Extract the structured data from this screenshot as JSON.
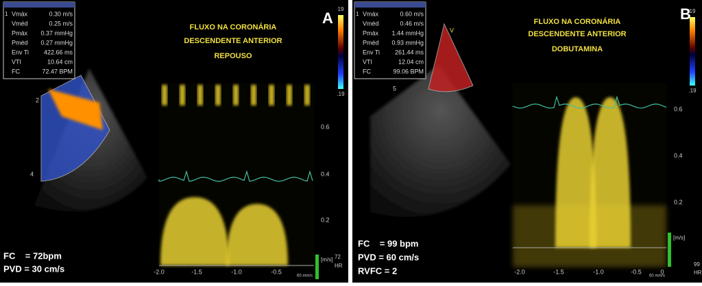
{
  "panels": [
    {
      "letter": "A",
      "measurements": [
        {
          "marker": "1",
          "name": "Vmáx",
          "value": "0.30 m/s"
        },
        {
          "name": "Vméd",
          "value": "0.25 m/s"
        },
        {
          "name": "Pmáx",
          "value": "0.37 mmHg"
        },
        {
          "name": "Pméd",
          "value": "0.27 mmHg"
        },
        {
          "name": "Env Ti",
          "value": "422.66 ms"
        },
        {
          "name": "VTI",
          "value": "10.64 cm"
        },
        {
          "name": "FC",
          "value": "72.47 BPM"
        }
      ],
      "title": [
        "FLUXO NA CORONÁRIA",
        "DESCENDENTE ANTERIOR",
        "REPOUSO"
      ],
      "notes": [
        "FC    = 72bpm",
        "PVD = 30 cm/s"
      ],
      "color_scale": [
        "19",
        ".19"
      ],
      "depth_ticks": [
        "2",
        "4"
      ],
      "x_ticks": [
        "-2.0",
        "-1.5",
        "-1.0",
        "-0.5"
      ],
      "y_ticks": [
        "0.6",
        "0.4",
        "0.2"
      ],
      "unit": "[m/s]",
      "sweep": "60 mm/s",
      "hr": [
        "72",
        "HR"
      ]
    },
    {
      "letter": "B",
      "measurements": [
        {
          "marker": "1",
          "name": "Vmáx",
          "value": "0.60 m/s"
        },
        {
          "name": "Vméd",
          "value": "0.46 m/s"
        },
        {
          "name": "Pmáx",
          "value": "1.44 mmHg"
        },
        {
          "name": "Pméd",
          "value": "0.93 mmHg"
        },
        {
          "name": "Env Ti",
          "value": "261.44 ms"
        },
        {
          "name": "VTI",
          "value": "12.04 cm"
        },
        {
          "name": "FC",
          "value": "99.06 BPM"
        }
      ],
      "title": [
        "FLUXO NA CORONÁRIA",
        "DESCENDENTE ANTERIOR",
        "DOBUTAMINA"
      ],
      "notes": [
        "FC    = 99 bpm",
        "PVD = 60 cm/s",
        "RVFC = 2"
      ],
      "color_scale": [
        "19",
        ".19"
      ],
      "depth_ticks": [
        "5",
        "V"
      ],
      "x_ticks": [
        "-2.0",
        "-1.5",
        "-1.0",
        "-0.5",
        "0"
      ],
      "y_ticks": [
        "0.6",
        "0.4",
        "0.2"
      ],
      "unit": "[m/s]",
      "sweep": "60 mm/s",
      "hr": [
        "99",
        "HR"
      ]
    }
  ]
}
